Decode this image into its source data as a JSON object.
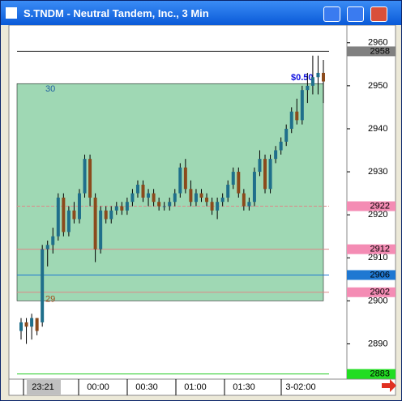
{
  "window": {
    "title": "S.TNDM - Neutral Tandem, Inc., 3 Min"
  },
  "time_labels": [
    "23:21",
    "00:00",
    "00:30",
    "01:00",
    "01:30",
    "3-02:00"
  ],
  "chart_data": {
    "type": "candlestick",
    "ylim": [
      2881.8,
      2964.1
    ],
    "yticks": [
      2890,
      2900,
      2910,
      2920,
      2930,
      2940,
      2950,
      2960
    ],
    "up_color": "#1f6f8b",
    "down_color": "#8b4a1c",
    "open": [
      2893,
      2895,
      2894,
      2896,
      2895,
      2912,
      2913,
      2915,
      2924,
      2916,
      2921,
      2919,
      2925,
      2933,
      2924,
      2912,
      2921,
      2919,
      2921,
      2922,
      2921,
      2923,
      2925,
      2927,
      2924,
      2925,
      2923,
      2922,
      2922,
      2923,
      2925,
      2931,
      2926,
      2923,
      2925,
      2924,
      2923,
      2921,
      2923,
      2924,
      2927,
      2930,
      2925,
      2922,
      2923,
      2930,
      2933,
      2926,
      2933,
      2935,
      2937,
      2940,
      2944,
      2942,
      2949,
      2950,
      2952,
      2953
    ],
    "high": [
      2896,
      2896,
      2897,
      2896,
      2913,
      2914,
      2917,
      2925,
      2925,
      2922,
      2923,
      2926,
      2934,
      2934,
      2925,
      2922,
      2922,
      2922,
      2923,
      2923,
      2924,
      2926,
      2928,
      2928,
      2926,
      2926,
      2924,
      2923,
      2924,
      2926,
      2932,
      2933,
      2928,
      2926,
      2926,
      2925,
      2924,
      2924,
      2925,
      2928,
      2931,
      2931,
      2926,
      2924,
      2931,
      2935,
      2934,
      2934,
      2936,
      2938,
      2941,
      2945,
      2947,
      2950,
      2953,
      2957,
      2957,
      2956
    ],
    "low": [
      2891,
      2890,
      2891,
      2892,
      2894,
      2908,
      2911,
      2914,
      2915,
      2915,
      2918,
      2918,
      2924,
      2922,
      2909,
      2911,
      2918,
      2918,
      2920,
      2920,
      2920,
      2922,
      2924,
      2923,
      2922,
      2922,
      2921,
      2921,
      2921,
      2922,
      2924,
      2925,
      2922,
      2922,
      2923,
      2922,
      2920,
      2919,
      2922,
      2923,
      2926,
      2924,
      2921,
      2921,
      2922,
      2929,
      2925,
      2925,
      2932,
      2934,
      2936,
      2939,
      2941,
      2941,
      2946,
      2948,
      2948,
      2946
    ],
    "close": [
      2895,
      2894,
      2896,
      2893,
      2912,
      2913,
      2915,
      2924,
      2916,
      2921,
      2919,
      2925,
      2933,
      2924,
      2912,
      2921,
      2919,
      2921,
      2922,
      2921,
      2923,
      2925,
      2927,
      2924,
      2925,
      2923,
      2922,
      2922,
      2923,
      2925,
      2931,
      2926,
      2923,
      2925,
      2924,
      2923,
      2921,
      2923,
      2924,
      2927,
      2930,
      2925,
      2922,
      2923,
      2930,
      2933,
      2926,
      2933,
      2935,
      2937,
      2940,
      2944,
      2942,
      2949,
      2950,
      2952,
      2953,
      2951
    ],
    "levels": [
      {
        "value": 2958,
        "color": "#808080",
        "line": "#333"
      },
      {
        "value": 2922,
        "color": "#f48cb4",
        "line": "#d88"
      },
      {
        "value": 2912,
        "color": "#f48cb4",
        "line": "#d88"
      },
      {
        "value": 2906,
        "color": "#1e78d2",
        "line": "#1e78d2"
      },
      {
        "value": 2902,
        "color": "#f48cb4",
        "line": "#d88"
      },
      {
        "value": 2883,
        "color": "#22dd22",
        "line": "#22cc22"
      }
    ],
    "position": {
      "top": 2950.5,
      "bottom": 2900,
      "color": "#9fd8b4",
      "top_label": "30",
      "bottom_label": "29",
      "profit_label": "$0.50"
    }
  }
}
